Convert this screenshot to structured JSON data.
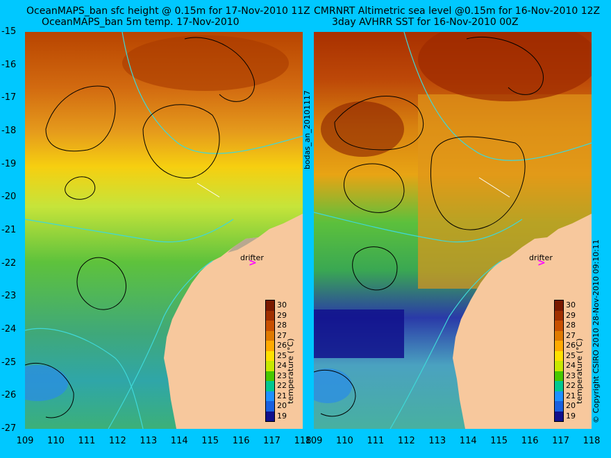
{
  "left_panel": {
    "title_line1": "OceanMAPS_ban sfc height @ 0.15m for 17-Nov-2010 11Z",
    "title_line2": "OceanMAPS_ban 5m temp. 17-Nov-2010",
    "colorbar_title": "temperature (°C)",
    "drifter_label": "drifter"
  },
  "right_panel": {
    "title_line1": "CMRNRT Altimetric sea level  @0.15m  for 16-Nov-2010 12Z",
    "title_line2": "3day AVHRR SST for 16-Nov-2010 00Z",
    "colorbar_title": "temperature (°C)",
    "drifter_label": "drifter"
  },
  "side_labels": {
    "middle": "bodas_an_20101117",
    "copyright": "© Copyright CSIRO 2010   28-Nov-2010 09:10:11"
  },
  "axes": {
    "y_ticks": [
      "-15",
      "-16",
      "-17",
      "-18",
      "-19",
      "-20",
      "-21",
      "-22",
      "-23",
      "-24",
      "-25",
      "-26",
      "-27"
    ],
    "x_ticks_left": [
      "109",
      "110",
      "111",
      "112",
      "113",
      "114",
      "115",
      "116",
      "117",
      "118"
    ],
    "x_ticks_right": [
      "109",
      "110",
      "111",
      "112",
      "113",
      "114",
      "115",
      "116",
      "117",
      "118"
    ]
  },
  "colorbar": {
    "labels": [
      "30",
      "29",
      "28",
      "27",
      "26",
      "25",
      "24",
      "23",
      "22",
      "21",
      "20",
      "19"
    ],
    "colors": [
      "#7a1a00",
      "#a03000",
      "#c85000",
      "#e07a00",
      "#ffaa00",
      "#ffe000",
      "#c8e800",
      "#48c800",
      "#00c890",
      "#1e90ff",
      "#1860e0",
      "#10108c"
    ]
  },
  "colors": {
    "background": "#00c8ff",
    "land": "#f7c89d",
    "drifter_marker": "#ff00ff",
    "contour": "#000000",
    "bathymetry": "#3fd8d8"
  }
}
